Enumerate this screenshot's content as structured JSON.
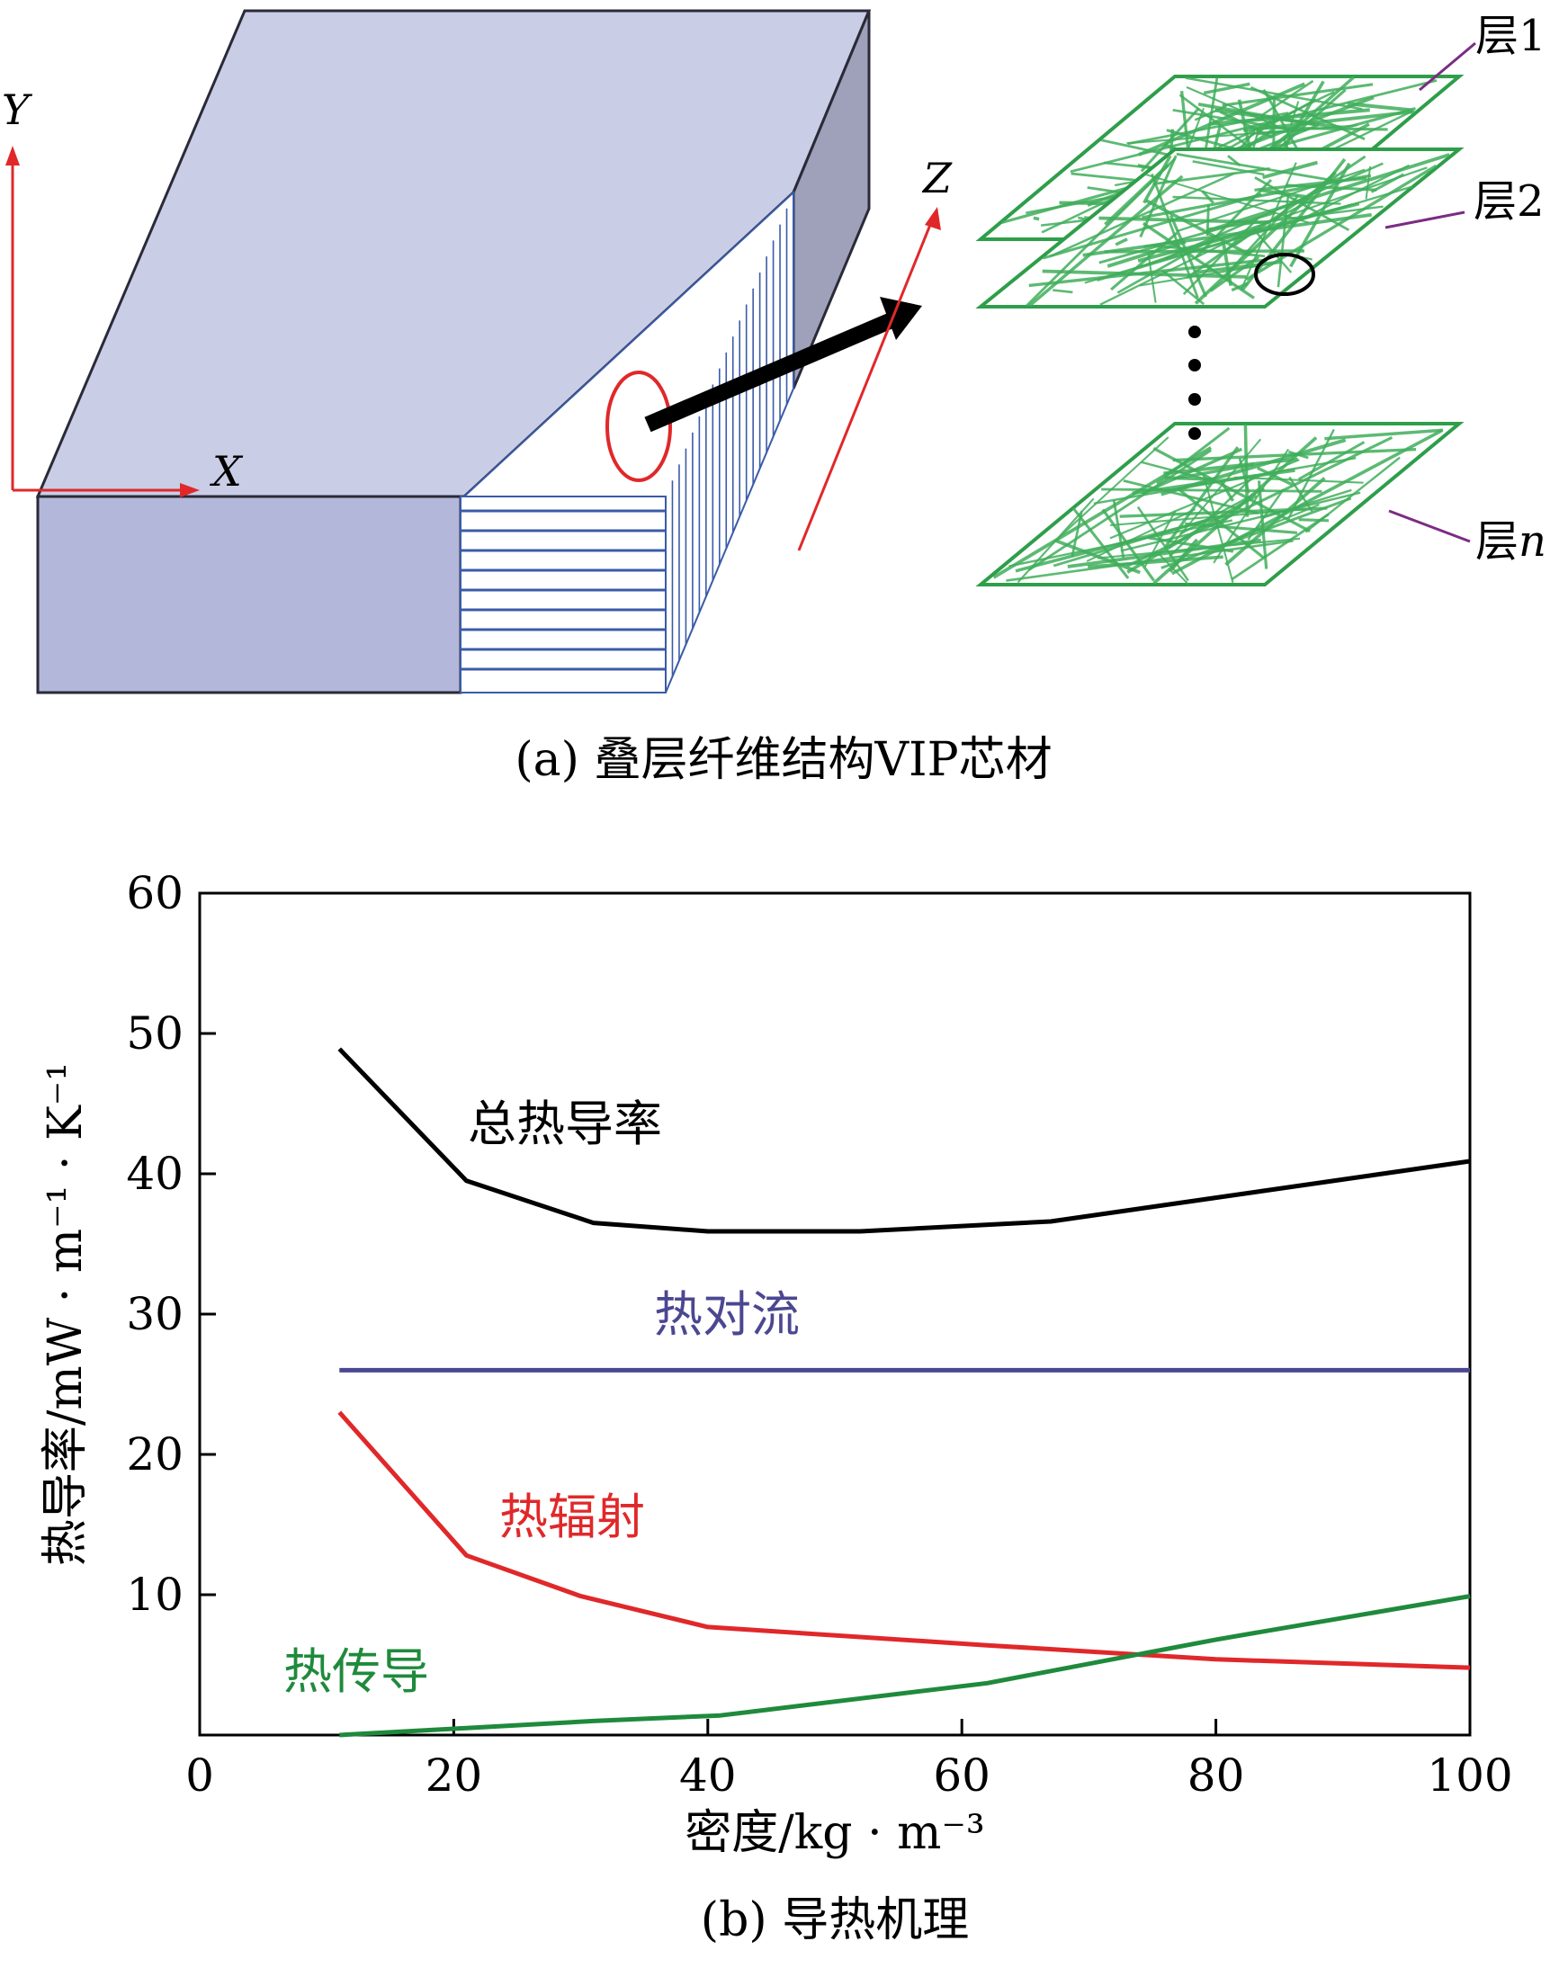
{
  "panel_a": {
    "caption": "(a) 叠层纤维结构VIP芯材",
    "axis_y": "Y",
    "axis_x": "X",
    "axis_z": "Z",
    "layer_1": "层1",
    "layer_2": "层2",
    "layer_n_prefix": "层",
    "layer_n_suffix": "n",
    "colors": {
      "block_top": "#c9cde6",
      "block_front": "#b3b7d9",
      "block_side": "#9ea1b9",
      "axis": "#e0282a",
      "fiber": "#2e9e4a",
      "leader": "#7b2c84",
      "stripe": "#3b5ba8"
    }
  },
  "panel_b": {
    "caption": "(b) 导热机理",
    "ylabel": "热导率/mW · m⁻¹ · K⁻¹",
    "xlabel": "密度/kg · m⁻³"
  },
  "chart_data": {
    "type": "line",
    "xlim": [
      0,
      100
    ],
    "ylim": [
      0,
      60
    ],
    "x_ticks": [
      "0",
      "20",
      "40",
      "60",
      "80",
      "100"
    ],
    "y_ticks": [
      "10",
      "20",
      "30",
      "40",
      "50",
      "60"
    ],
    "grid": false,
    "series": [
      {
        "name": "总热导率",
        "color": "#000000",
        "x": [
          11,
          21,
          31,
          40,
          52,
          67,
          100
        ],
        "y": [
          48.9,
          39.5,
          36.5,
          35.9,
          35.9,
          36.6,
          40.9
        ]
      },
      {
        "name": "热对流",
        "color": "#4b4791",
        "x": [
          11,
          100
        ],
        "y": [
          26,
          26
        ]
      },
      {
        "name": "热辐射",
        "color": "#e0282a",
        "x": [
          11,
          21,
          30,
          40,
          62,
          80,
          100
        ],
        "y": [
          23,
          12.8,
          9.9,
          7.7,
          6.4,
          5.4,
          4.8
        ]
      },
      {
        "name": "热传导",
        "color": "#1f8a3c",
        "x": [
          11,
          21,
          31,
          41,
          62,
          80,
          100
        ],
        "y": [
          0,
          0.5,
          1.0,
          1.4,
          3.7,
          6.8,
          9.9
        ]
      }
    ]
  }
}
